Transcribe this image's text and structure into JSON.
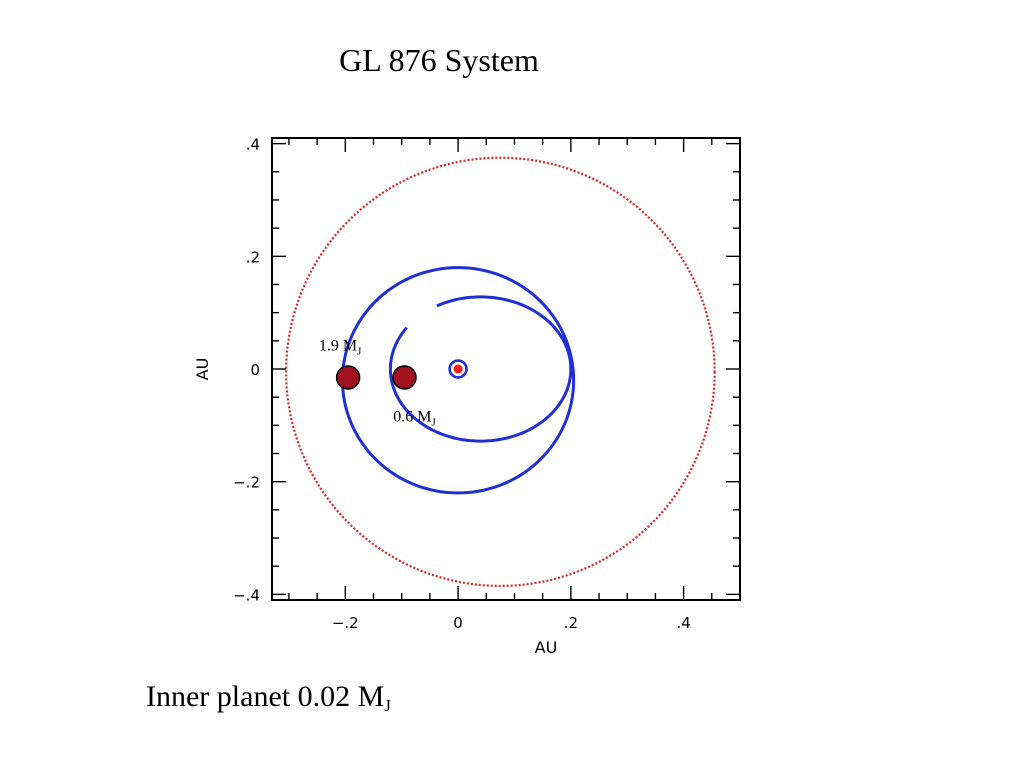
{
  "slide": {
    "title": "GL 876 System",
    "caption_main": "Inner planet 0.02 M",
    "caption_sub": "J"
  },
  "chart_data": {
    "type": "scatter",
    "xlabel": "AU",
    "ylabel": "AU",
    "xlim": [
      -0.33,
      0.5
    ],
    "ylim": [
      -0.41,
      0.41
    ],
    "x_ticks": [
      -0.2,
      0,
      0.2,
      0.4
    ],
    "y_ticks": [
      -0.4,
      -0.2,
      0,
      0.2,
      0.4
    ],
    "x_tick_labels": [
      "−.2",
      "0",
      ".2",
      ".4"
    ],
    "y_tick_labels": [
      "−.4",
      "−.2",
      "0",
      ".2",
      ".4"
    ],
    "grid": false,
    "star": {
      "x": 0,
      "y": 0,
      "color": "#ff1a1a"
    },
    "inner_ring": {
      "cx": 0,
      "cy": 0,
      "r": 0.015,
      "color": "#1f2fd6"
    },
    "outer_circle": {
      "cx": 0.075,
      "cy": -0.005,
      "r": 0.38,
      "color": "#e02020",
      "dotted": true
    },
    "spiral_outer": {
      "cx": 0,
      "cy": -0.02,
      "rx": 0.205,
      "ry": 0.2,
      "from_deg": 135,
      "to_deg": 540,
      "color": "#1f2fd6"
    },
    "spiral_inner": {
      "cx": 0.04,
      "cy": 0,
      "rx": 0.16,
      "ry": 0.128,
      "from_deg": 145,
      "to_deg": 480,
      "color": "#1f2fd6"
    },
    "planets": [
      {
        "label_main": "1.9 M",
        "label_sub": "J",
        "x": -0.195,
        "y": -0.015,
        "color": "#a0101e"
      },
      {
        "label_main": "0.6 M",
        "label_sub": "J",
        "x": -0.095,
        "y": -0.015,
        "color": "#a0101e"
      }
    ]
  }
}
